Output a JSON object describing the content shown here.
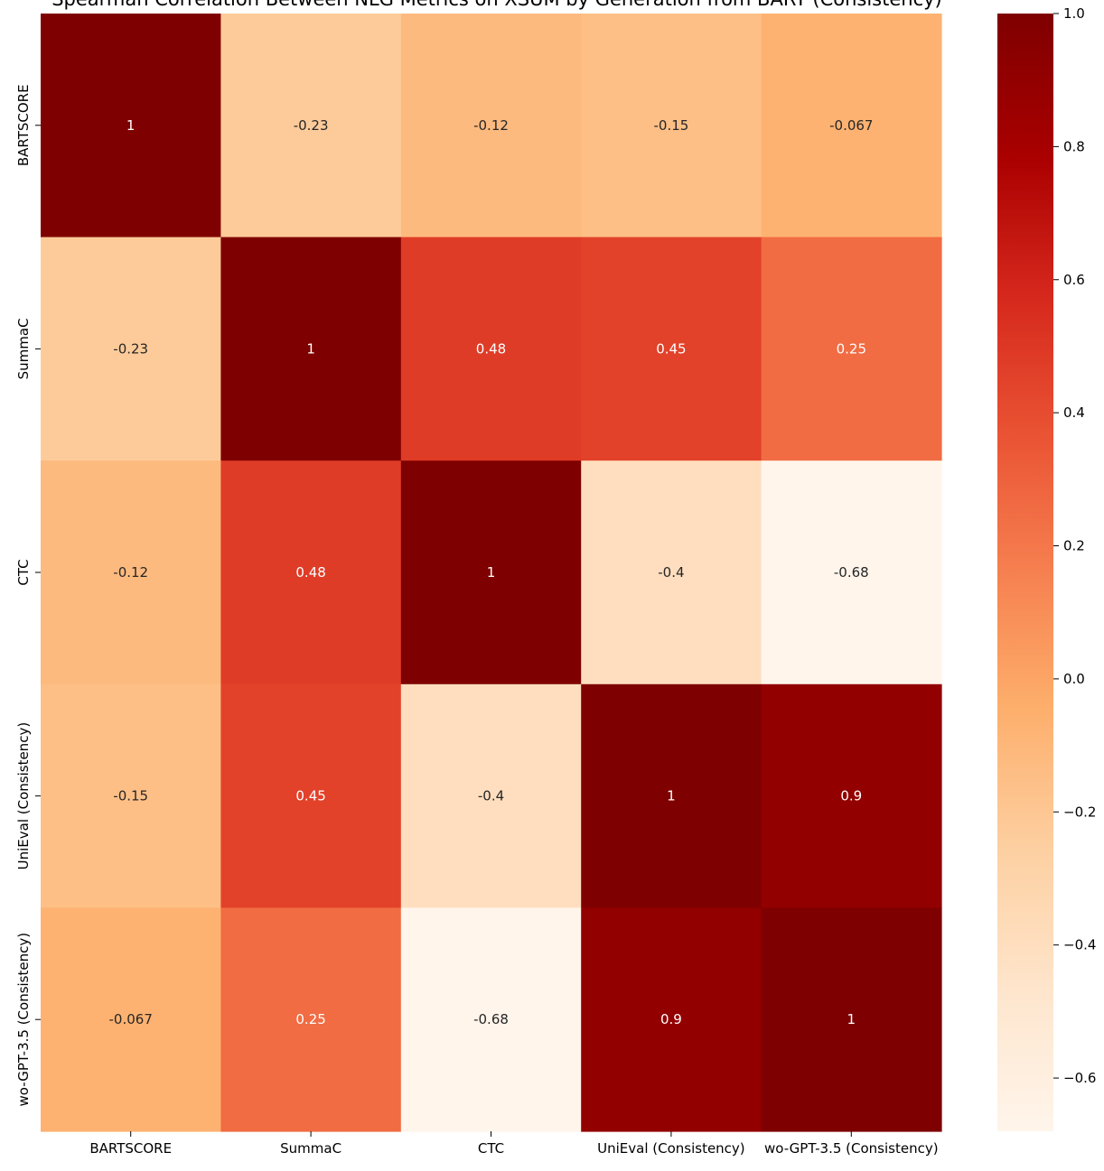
{
  "chart_data": {
    "type": "heatmap",
    "title": "Spearman Correlation Between NLG Metrics on XSUM by Generation from BART (Consistency)",
    "x_labels": [
      "BARTSCORE",
      "SummaC",
      "CTC",
      "UniEval (Consistency)",
      "wo-GPT-3.5 (Consistency)"
    ],
    "y_labels": [
      "BARTSCORE",
      "SummaC",
      "CTC",
      "UniEval (Consistency)",
      "wo-GPT-3.5 (Consistency)"
    ],
    "values": [
      [
        1,
        -0.23,
        -0.12,
        -0.15,
        -0.067
      ],
      [
        -0.23,
        1,
        0.48,
        0.45,
        0.25
      ],
      [
        -0.12,
        0.48,
        1,
        -0.4,
        -0.68
      ],
      [
        -0.15,
        0.45,
        -0.4,
        1,
        0.9
      ],
      [
        -0.067,
        0.25,
        -0.68,
        0.9,
        1
      ]
    ],
    "cell_labels": [
      [
        "1",
        "-0.23",
        "-0.12",
        "-0.15",
        "-0.067"
      ],
      [
        "-0.23",
        "1",
        "0.48",
        "0.45",
        "0.25"
      ],
      [
        "-0.12",
        "0.48",
        "1",
        "-0.4",
        "-0.68"
      ],
      [
        "-0.15",
        "0.45",
        "-0.4",
        "1",
        "0.9"
      ],
      [
        "-0.067",
        "0.25",
        "-0.68",
        "0.9",
        "1"
      ]
    ],
    "colormap": "OrRd",
    "colorbar": {
      "range": [
        -0.68,
        1.0
      ],
      "ticks": [
        1.0,
        0.8,
        0.6,
        0.4,
        0.2,
        0.0,
        -0.2,
        -0.4,
        -0.6
      ],
      "tick_labels": [
        "1.0",
        "0.8",
        "0.6",
        "0.4",
        "0.2",
        "0.0",
        "−0.2",
        "−0.4",
        "−0.6"
      ]
    },
    "annotations": true,
    "grid": false,
    "legend": "colorbar-right"
  }
}
